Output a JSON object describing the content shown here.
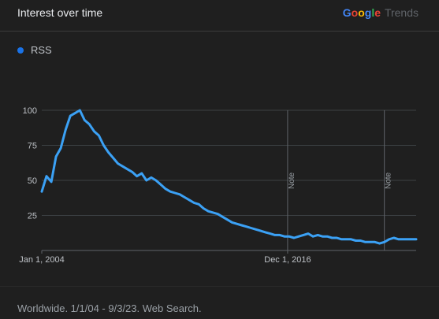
{
  "header": {
    "title": "Interest over time",
    "brand": {
      "google": "Google",
      "trends": "Trends"
    }
  },
  "legend": {
    "label": "RSS",
    "color": "#1a73e8"
  },
  "footer": {
    "text": "Worldwide. 1/1/04 - 9/3/23. Web Search."
  },
  "chart_data": {
    "type": "line",
    "title": "Interest over time",
    "xlabel": "",
    "ylabel": "",
    "ylim": [
      0,
      100
    ],
    "y_ticks": [
      25,
      50,
      75,
      100
    ],
    "x_tick_labels": [
      {
        "label": "Jan 1, 2004",
        "year": 2004.0
      },
      {
        "label": "Dec 1, 2016",
        "year": 2016.917
      }
    ],
    "x_range": [
      2004.0,
      2023.67
    ],
    "annotations": [
      {
        "label": "Note",
        "year": 2016.917
      },
      {
        "label": "Note",
        "year": 2022.0
      }
    ],
    "line_color": "#3ba1f5",
    "grid": true,
    "series": [
      {
        "name": "RSS",
        "points": [
          [
            2004.0,
            42
          ],
          [
            2004.25,
            53
          ],
          [
            2004.5,
            49
          ],
          [
            2004.75,
            67
          ],
          [
            2005.0,
            73
          ],
          [
            2005.25,
            86
          ],
          [
            2005.5,
            96
          ],
          [
            2005.75,
            98
          ],
          [
            2006.0,
            100
          ],
          [
            2006.25,
            93
          ],
          [
            2006.5,
            90
          ],
          [
            2006.75,
            85
          ],
          [
            2007.0,
            82
          ],
          [
            2007.25,
            75
          ],
          [
            2007.5,
            70
          ],
          [
            2007.75,
            66
          ],
          [
            2008.0,
            62
          ],
          [
            2008.25,
            60
          ],
          [
            2008.5,
            58
          ],
          [
            2008.75,
            56
          ],
          [
            2009.0,
            53
          ],
          [
            2009.25,
            55
          ],
          [
            2009.5,
            50
          ],
          [
            2009.75,
            52
          ],
          [
            2010.0,
            50
          ],
          [
            2010.25,
            47
          ],
          [
            2010.5,
            44
          ],
          [
            2010.75,
            42
          ],
          [
            2011.0,
            41
          ],
          [
            2011.25,
            40
          ],
          [
            2011.5,
            38
          ],
          [
            2011.75,
            36
          ],
          [
            2012.0,
            34
          ],
          [
            2012.25,
            33
          ],
          [
            2012.5,
            30
          ],
          [
            2012.75,
            28
          ],
          [
            2013.0,
            27
          ],
          [
            2013.25,
            26
          ],
          [
            2013.5,
            24
          ],
          [
            2013.75,
            22
          ],
          [
            2014.0,
            20
          ],
          [
            2014.25,
            19
          ],
          [
            2014.5,
            18
          ],
          [
            2014.75,
            17
          ],
          [
            2015.0,
            16
          ],
          [
            2015.25,
            15
          ],
          [
            2015.5,
            14
          ],
          [
            2015.75,
            13
          ],
          [
            2016.0,
            12
          ],
          [
            2016.25,
            11
          ],
          [
            2016.5,
            11
          ],
          [
            2016.75,
            10
          ],
          [
            2017.0,
            10
          ],
          [
            2017.25,
            9
          ],
          [
            2017.5,
            10
          ],
          [
            2017.75,
            11
          ],
          [
            2018.0,
            12
          ],
          [
            2018.25,
            10
          ],
          [
            2018.5,
            11
          ],
          [
            2018.75,
            10
          ],
          [
            2019.0,
            10
          ],
          [
            2019.25,
            9
          ],
          [
            2019.5,
            9
          ],
          [
            2019.75,
            8
          ],
          [
            2020.0,
            8
          ],
          [
            2020.25,
            8
          ],
          [
            2020.5,
            7
          ],
          [
            2020.75,
            7
          ],
          [
            2021.0,
            6
          ],
          [
            2021.25,
            6
          ],
          [
            2021.5,
            6
          ],
          [
            2021.75,
            5
          ],
          [
            2022.0,
            6
          ],
          [
            2022.25,
            8
          ],
          [
            2022.5,
            9
          ],
          [
            2022.75,
            8
          ],
          [
            2023.0,
            8
          ],
          [
            2023.25,
            8
          ],
          [
            2023.5,
            8
          ],
          [
            2023.67,
            8
          ]
        ]
      }
    ]
  }
}
